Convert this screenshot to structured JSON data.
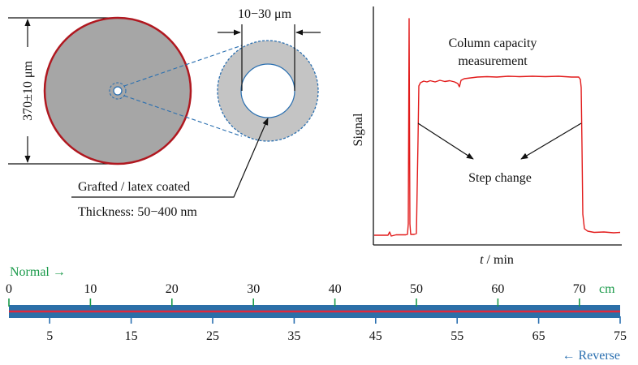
{
  "colors": {
    "fiber_fill": "#a6a6a6",
    "fiber_edge": "#b01820",
    "shell_fill": "#c4c4c4",
    "dash_blue": "#2a6fb0",
    "signal_red": "#e21b1b",
    "scale_green": "#1a9a4a",
    "scale_blue": "#2a6fb0",
    "bar_fill": "#2b6fa8",
    "bar_line": "#e0283c"
  },
  "cross_section": {
    "diameter_label": "370±10 μm",
    "wall_label": "10−30 μm",
    "coating_label": "Grafted / latex coated",
    "thickness_label": "Thickness: 50−400 nm"
  },
  "signal_plot": {
    "ylabel": "Signal",
    "xlabel_var": "t",
    "xlabel_unit": " / min",
    "annotation_capacity_line1": "Column capacity",
    "annotation_capacity_line2": "measurement",
    "annotation_step": "Step change"
  },
  "scale_bar": {
    "normal_label": "Normal →",
    "reverse_label": "← Reverse",
    "unit_label": "cm",
    "normal_ticks": [
      "0",
      "10",
      "20",
      "30",
      "40",
      "50",
      "60",
      "70"
    ],
    "reverse_ticks": [
      "5",
      "15",
      "25",
      "35",
      "45",
      "55",
      "65",
      "75"
    ]
  }
}
